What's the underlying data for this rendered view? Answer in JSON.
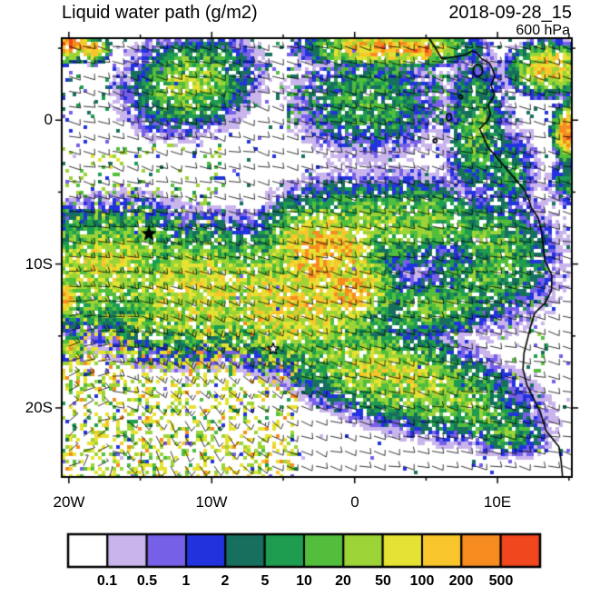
{
  "header": {
    "title": "Liquid water path (g/m2)",
    "datetime": "2018-09-28_15",
    "level": "600 hPa"
  },
  "axes": {
    "y_ticks": [
      {
        "label": "0",
        "lat": 0
      },
      {
        "label": "10S",
        "lat": -10
      },
      {
        "label": "20S",
        "lat": -20
      }
    ],
    "x_ticks": [
      {
        "label": "20W",
        "lon": -20
      },
      {
        "label": "10W",
        "lon": -10
      },
      {
        "label": "0",
        "lon": 0
      },
      {
        "label": "10E",
        "lon": 10
      }
    ]
  },
  "colorbar": {
    "levels": [
      0.1,
      0.5,
      1,
      2,
      5,
      10,
      20,
      50,
      100,
      200,
      500
    ],
    "tick_labels": [
      "0.1",
      "0.5",
      "1",
      "2",
      "5",
      "10",
      "20",
      "50",
      "100",
      "200",
      "500"
    ]
  },
  "chart_data": {
    "type": "heatmap",
    "variable": "Liquid water path",
    "units": "g/m2",
    "time": "2018-09-28_15",
    "pressure_level_hPa": 600,
    "lon_range": [
      -20.5,
      15.2
    ],
    "lat_range": [
      -24.8,
      5.7
    ],
    "levels": [
      0.1,
      0.5,
      1,
      2,
      5,
      10,
      20,
      50,
      100,
      200,
      500
    ],
    "palette": [
      "#FFFFFF",
      "#C9B5EC",
      "#7660E8",
      "#2233DD",
      "#176F5E",
      "#1E9C50",
      "#52BE3C",
      "#9CD437",
      "#E6E233",
      "#F8C62C",
      "#F68C20",
      "#F0471E"
    ],
    "field_blobs": [
      [
        -20.1,
        5.4,
        1.0,
        0.7,
        0,
        600
      ],
      [
        -18.4,
        4.9,
        0.7,
        0.5,
        0,
        260
      ],
      [
        -11.5,
        2.6,
        2.6,
        1.9,
        15,
        45
      ],
      [
        2.5,
        5.0,
        3.2,
        0.7,
        0,
        280
      ],
      [
        4.6,
        4.9,
        0.8,
        0.5,
        0,
        600
      ],
      [
        1.0,
        1.2,
        3.0,
        2.2,
        0,
        14
      ],
      [
        8.6,
        -0.6,
        1.3,
        3.0,
        0,
        22
      ],
      [
        10.8,
        -3.5,
        1.2,
        1.8,
        0,
        12
      ],
      [
        13.6,
        3.6,
        1.5,
        1.0,
        0,
        200
      ],
      [
        15.0,
        -0.8,
        0.6,
        1.1,
        0,
        500
      ],
      [
        15.0,
        -4.2,
        0.8,
        1.0,
        0,
        15
      ],
      [
        -17.5,
        -10.2,
        3.8,
        2.4,
        10,
        85
      ],
      [
        -11.0,
        -11.8,
        4.5,
        2.6,
        5,
        95
      ],
      [
        -4.5,
        -12.6,
        4.5,
        2.6,
        -12,
        130
      ],
      [
        -2.2,
        -9.3,
        2.6,
        2.2,
        0,
        260
      ],
      [
        -0.4,
        -11.8,
        2.0,
        1.5,
        0,
        220
      ],
      [
        1.5,
        -7.2,
        3.6,
        1.7,
        -12,
        40
      ],
      [
        5.5,
        -7.0,
        3.4,
        1.6,
        -18,
        30
      ],
      [
        9.3,
        -9.5,
        2.7,
        2.7,
        0,
        28
      ],
      [
        5.5,
        -13.0,
        3.0,
        1.3,
        8,
        24
      ],
      [
        7.2,
        -9.4,
        2.4,
        1.0,
        -10,
        3.2,
        "min"
      ],
      [
        6.6,
        -9.1,
        1.2,
        0.45,
        -10,
        1.4,
        "min"
      ],
      [
        2.5,
        -17.6,
        5.6,
        1.9,
        -18,
        75
      ],
      [
        8.0,
        -20.0,
        2.4,
        1.4,
        -15,
        30
      ],
      [
        -20.2,
        -12.4,
        0.6,
        0.8,
        0,
        260
      ],
      [
        -19.8,
        -15.8,
        0.5,
        0.5,
        0,
        130
      ],
      [
        10.5,
        -21.5,
        1.8,
        1.0,
        -10,
        20
      ]
    ],
    "speckle_zones": [
      [
        -20.5,
        15.2,
        0,
        5.7,
        0.1,
        0.4,
        6
      ],
      [
        -5.5,
        7.0,
        -0.5,
        3.8,
        0.17,
        1.2,
        20
      ],
      [
        -20.5,
        -4,
        -25,
        -13.5,
        0.3,
        4,
        90
      ],
      [
        -20.5,
        -4,
        -25,
        -13.5,
        0.04,
        100,
        350
      ],
      [
        -20.5,
        -9,
        -8.5,
        -1.5,
        0.14,
        3,
        55
      ],
      [
        7,
        13.5,
        -18,
        -9.5,
        0.07,
        3,
        25
      ],
      [
        -20.5,
        15.2,
        -24.8,
        5.7,
        0.035,
        0.3,
        2.5
      ],
      [
        8,
        13,
        -23,
        -19.5,
        0.08,
        5,
        40
      ]
    ],
    "markers": [
      {
        "type": "star-filled",
        "lon": -14.4,
        "lat": -7.9
      },
      {
        "type": "star-open",
        "lon": -5.7,
        "lat": -15.9
      }
    ],
    "wind": {
      "style": "barbs",
      "base_u_kt": -8,
      "base_v_kt": 2,
      "speed_scale": 1.25,
      "vortex": {
        "lon": -16,
        "lat": -19,
        "strength": 1.1,
        "radius_deg": 7
      }
    },
    "coastline": [
      [
        5.2,
        5.7
      ],
      [
        5.6,
        5.1
      ],
      [
        5.9,
        4.6
      ],
      [
        6.1,
        4.28
      ],
      [
        6.6,
        4.34
      ],
      [
        7.1,
        4.42
      ],
      [
        7.7,
        4.52
      ],
      [
        8.2,
        4.8
      ],
      [
        8.5,
        4.72
      ],
      [
        8.9,
        4.25
      ],
      [
        9.4,
        4.0
      ],
      [
        9.65,
        3.55
      ],
      [
        9.8,
        3.1
      ],
      [
        9.55,
        2.4
      ],
      [
        9.8,
        1.75
      ],
      [
        9.35,
        1.05
      ],
      [
        9.5,
        0.45
      ],
      [
        9.33,
        0.0
      ],
      [
        8.75,
        -0.6
      ],
      [
        9.05,
        -1.25
      ],
      [
        9.35,
        -1.9
      ],
      [
        10.3,
        -3.0
      ],
      [
        11.15,
        -4.0
      ],
      [
        11.85,
        -4.8
      ],
      [
        12.2,
        -5.55
      ],
      [
        12.35,
        -6.05
      ],
      [
        12.85,
        -6.8
      ],
      [
        13.1,
        -7.8
      ],
      [
        13.2,
        -8.8
      ],
      [
        13.3,
        -9.7
      ],
      [
        13.8,
        -10.8
      ],
      [
        13.78,
        -11.8
      ],
      [
        13.35,
        -12.7
      ],
      [
        12.6,
        -13.4
      ],
      [
        12.3,
        -14.4
      ],
      [
        12.1,
        -15.2
      ],
      [
        11.85,
        -16.2
      ],
      [
        11.78,
        -17.3
      ],
      [
        12.05,
        -18.4
      ],
      [
        12.5,
        -19.3
      ],
      [
        13.0,
        -20.3
      ],
      [
        13.4,
        -21.6
      ],
      [
        14.3,
        -22.7
      ],
      [
        14.45,
        -23.7
      ],
      [
        14.55,
        -24.8
      ]
    ],
    "islands": [
      {
        "lon": 8.62,
        "lat": 3.45,
        "rx": 0.33,
        "ry": 0.42
      },
      {
        "lon": 7.42,
        "lat": 1.62,
        "rx": 0.12,
        "ry": 0.12
      },
      {
        "lon": 6.6,
        "lat": 0.22,
        "rx": 0.18,
        "ry": 0.24
      },
      {
        "lon": 5.63,
        "lat": -1.43,
        "rx": 0.09,
        "ry": 0.09
      }
    ]
  }
}
